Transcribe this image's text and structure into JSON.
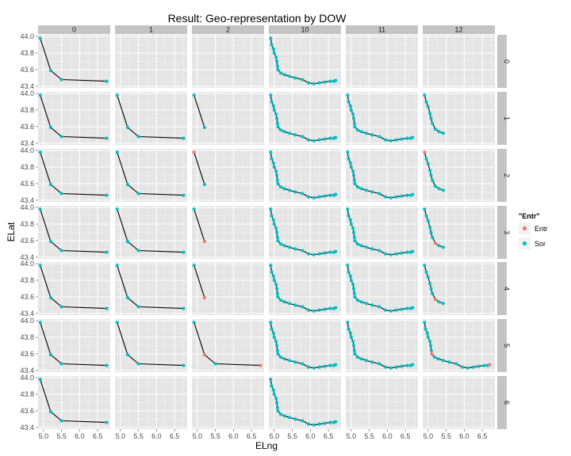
{
  "chart_data": {
    "type": "scatter",
    "title": "Result: Geo-representation by DOW",
    "xlabel": "ELng",
    "ylabel": "ELat",
    "xlim": [
      4.85,
      6.85
    ],
    "ylim": [
      43.38,
      44.02
    ],
    "x_ticks": [
      "5.0",
      "5.5",
      "6.0",
      "6.5"
    ],
    "x_tick_values": [
      5.0,
      5.5,
      6.0,
      6.5
    ],
    "y_ticks": [
      "43.4",
      "43.6",
      "43.8",
      "44.0"
    ],
    "y_tick_values": [
      43.4,
      43.6,
      43.8,
      44.0
    ],
    "facet_columns": [
      "0",
      "1",
      "2",
      "10",
      "11",
      "12"
    ],
    "facet_rows": [
      "0",
      "1",
      "2",
      "3",
      "4",
      "5",
      "6"
    ],
    "legend": {
      "title": "\"Entr\"",
      "items": [
        {
          "label": "Entr",
          "color": "#F8766D"
        },
        {
          "label": "Sor",
          "color": "#00BFC4"
        }
      ]
    },
    "routes": {
      "short": [
        [
          4.91,
          43.98
        ],
        [
          5.2,
          43.59
        ],
        [
          5.5,
          43.48
        ],
        [
          6.75,
          43.46
        ]
      ],
      "long": [
        [
          4.9,
          43.98
        ],
        [
          4.93,
          43.9
        ],
        [
          4.98,
          43.85
        ],
        [
          5.0,
          43.8
        ],
        [
          5.05,
          43.75
        ],
        [
          5.07,
          43.7
        ],
        [
          5.09,
          43.64
        ],
        [
          5.1,
          43.6
        ],
        [
          5.18,
          43.56
        ],
        [
          5.28,
          43.54
        ],
        [
          5.42,
          43.52
        ],
        [
          5.58,
          43.5
        ],
        [
          5.78,
          43.48
        ],
        [
          5.95,
          43.44
        ],
        [
          6.1,
          43.43
        ],
        [
          6.25,
          43.44
        ],
        [
          6.4,
          43.45
        ],
        [
          6.55,
          43.46
        ],
        [
          6.65,
          43.46
        ],
        [
          6.7,
          43.47
        ]
      ],
      "partial12": [
        [
          4.9,
          43.98
        ],
        [
          4.95,
          43.9
        ],
        [
          5.0,
          43.84
        ],
        [
          5.05,
          43.76
        ],
        [
          5.08,
          43.7
        ],
        [
          5.12,
          43.64
        ],
        [
          5.2,
          43.57
        ],
        [
          5.3,
          43.54
        ],
        [
          5.42,
          43.52
        ]
      ]
    },
    "panels": [
      {
        "row": "0",
        "col": "0",
        "route": "short",
        "n": 4,
        "entr": []
      },
      {
        "row": "0",
        "col": "1",
        "route": "none",
        "n": 0,
        "entr": []
      },
      {
        "row": "0",
        "col": "2",
        "route": "none",
        "n": 0,
        "entr": []
      },
      {
        "row": "0",
        "col": "10",
        "route": "long",
        "n": 20,
        "entr": []
      },
      {
        "row": "0",
        "col": "11",
        "route": "none",
        "n": 0,
        "entr": []
      },
      {
        "row": "0",
        "col": "12",
        "route": "none",
        "n": 0,
        "entr": []
      },
      {
        "row": "1",
        "col": "0",
        "route": "short",
        "n": 4,
        "entr": []
      },
      {
        "row": "1",
        "col": "1",
        "route": "short",
        "n": 4,
        "entr": []
      },
      {
        "row": "1",
        "col": "2",
        "route": "short",
        "n": 2,
        "entr": []
      },
      {
        "row": "1",
        "col": "10",
        "route": "long",
        "n": 20,
        "entr": []
      },
      {
        "row": "1",
        "col": "11",
        "route": "long",
        "n": 20,
        "entr": []
      },
      {
        "row": "1",
        "col": "12",
        "route": "partial12",
        "n": 9,
        "entr": []
      },
      {
        "row": "2",
        "col": "0",
        "route": "short",
        "n": 4,
        "entr": []
      },
      {
        "row": "2",
        "col": "1",
        "route": "short",
        "n": 4,
        "entr": []
      },
      {
        "row": "2",
        "col": "2",
        "route": "short",
        "n": 2,
        "entr": [
          0
        ]
      },
      {
        "row": "2",
        "col": "10",
        "route": "long",
        "n": 20,
        "entr": []
      },
      {
        "row": "2",
        "col": "11",
        "route": "long",
        "n": 20,
        "entr": []
      },
      {
        "row": "2",
        "col": "12",
        "route": "partial12",
        "n": 9,
        "entr": [
          0
        ]
      },
      {
        "row": "3",
        "col": "0",
        "route": "short",
        "n": 4,
        "entr": []
      },
      {
        "row": "3",
        "col": "1",
        "route": "short",
        "n": 4,
        "entr": []
      },
      {
        "row": "3",
        "col": "2",
        "route": "short",
        "n": 2,
        "entr": [
          1
        ]
      },
      {
        "row": "3",
        "col": "10",
        "route": "long",
        "n": 20,
        "entr": []
      },
      {
        "row": "3",
        "col": "11",
        "route": "long",
        "n": 20,
        "entr": []
      },
      {
        "row": "3",
        "col": "12",
        "route": "partial12",
        "n": 9,
        "entr": [
          6
        ]
      },
      {
        "row": "4",
        "col": "0",
        "route": "short",
        "n": 4,
        "entr": []
      },
      {
        "row": "4",
        "col": "1",
        "route": "short",
        "n": 4,
        "entr": []
      },
      {
        "row": "4",
        "col": "2",
        "route": "short",
        "n": 2,
        "entr": [
          1
        ]
      },
      {
        "row": "4",
        "col": "10",
        "route": "long",
        "n": 20,
        "entr": []
      },
      {
        "row": "4",
        "col": "11",
        "route": "long",
        "n": 20,
        "entr": []
      },
      {
        "row": "4",
        "col": "12",
        "route": "partial12",
        "n": 9,
        "entr": [
          6
        ]
      },
      {
        "row": "5",
        "col": "0",
        "route": "short",
        "n": 4,
        "entr": []
      },
      {
        "row": "5",
        "col": "1",
        "route": "short",
        "n": 4,
        "entr": []
      },
      {
        "row": "5",
        "col": "2",
        "route": "short",
        "n": 4,
        "entr": [
          1,
          3
        ]
      },
      {
        "row": "5",
        "col": "10",
        "route": "long",
        "n": 20,
        "entr": []
      },
      {
        "row": "5",
        "col": "11",
        "route": "long",
        "n": 20,
        "entr": []
      },
      {
        "row": "5",
        "col": "12",
        "route": "long",
        "n": 20,
        "entr": [
          7,
          19
        ]
      },
      {
        "row": "6",
        "col": "0",
        "route": "short",
        "n": 4,
        "entr": []
      },
      {
        "row": "6",
        "col": "1",
        "route": "none",
        "n": 0,
        "entr": []
      },
      {
        "row": "6",
        "col": "2",
        "route": "none",
        "n": 0,
        "entr": []
      },
      {
        "row": "6",
        "col": "10",
        "route": "long",
        "n": 20,
        "entr": []
      },
      {
        "row": "6",
        "col": "11",
        "route": "none",
        "n": 0,
        "entr": []
      },
      {
        "row": "6",
        "col": "12",
        "route": "none",
        "n": 0,
        "entr": []
      }
    ]
  }
}
